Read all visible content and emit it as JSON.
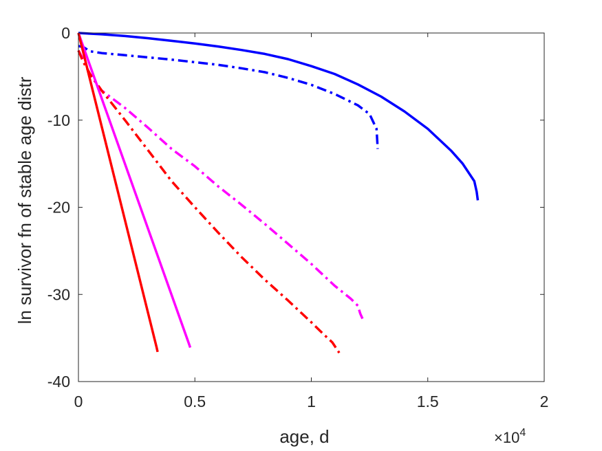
{
  "chart_data": {
    "type": "line",
    "title": "",
    "xlabel": "age, d",
    "ylabel": "ln survivor fn of stable age distr",
    "x_exponent_label": "×10",
    "x_exponent_power": "4",
    "xlim": [
      0,
      20000
    ],
    "ylim": [
      -40,
      0
    ],
    "x_ticks": [
      0,
      5000,
      10000,
      15000,
      20000
    ],
    "x_tick_labels": [
      "0",
      "0.5",
      "1",
      "1.5",
      "2"
    ],
    "y_ticks": [
      0,
      -10,
      -20,
      -30,
      -40
    ],
    "y_tick_labels": [
      "0",
      "-10",
      "-20",
      "-30",
      "-40"
    ],
    "grid": false,
    "legend": "none",
    "series": [
      {
        "color": "#0000ff",
        "style": "solid",
        "x": [
          0,
          1000,
          2000,
          3000,
          4000,
          5000,
          6000,
          7000,
          8000,
          9000,
          10000,
          11000,
          12000,
          13000,
          14000,
          15000,
          16000,
          16500,
          17000,
          17100,
          17150
        ],
        "y": [
          0,
          -0.15,
          -0.35,
          -0.6,
          -0.9,
          -1.2,
          -1.55,
          -1.95,
          -2.4,
          -3.0,
          -3.8,
          -4.7,
          -5.9,
          -7.3,
          -9.0,
          -11.0,
          -13.5,
          -15.0,
          -17.0,
          -18.2,
          -19.2
        ]
      },
      {
        "color": "#0000ff",
        "style": "dashdot",
        "x": [
          0,
          200,
          500,
          1000,
          2000,
          3000,
          4000,
          5000,
          6000,
          7000,
          8000,
          9000,
          10000,
          11000,
          12000,
          12500,
          12800,
          12850
        ],
        "y": [
          -1.5,
          -1.6,
          -2.1,
          -2.3,
          -2.55,
          -2.8,
          -3.05,
          -3.35,
          -3.65,
          -4.05,
          -4.5,
          -5.15,
          -5.95,
          -7.0,
          -8.3,
          -9.3,
          -11.0,
          -13.3
        ]
      },
      {
        "color": "#ff00ff",
        "style": "dashdot",
        "x": [
          0,
          200,
          500,
          1000,
          2000,
          3000,
          4000,
          5000,
          6000,
          7000,
          8000,
          9000,
          10000,
          11000,
          11700,
          12000,
          12100,
          12200
        ],
        "y": [
          -2.0,
          -3.0,
          -4.8,
          -6.6,
          -8.6,
          -10.9,
          -13.3,
          -15.3,
          -17.6,
          -19.7,
          -21.9,
          -24.2,
          -26.5,
          -29.0,
          -30.5,
          -31.3,
          -32.2,
          -32.8
        ]
      },
      {
        "color": "#ff0000",
        "style": "dashdot",
        "x": [
          0,
          200,
          500,
          1000,
          2000,
          3000,
          4000,
          5000,
          6000,
          7000,
          8000,
          9000,
          10000,
          10500,
          10900,
          11100,
          11200
        ],
        "y": [
          -2.0,
          -3.3,
          -4.7,
          -6.6,
          -10.0,
          -13.5,
          -17.0,
          -20.0,
          -22.9,
          -25.7,
          -28.3,
          -30.7,
          -33.2,
          -34.5,
          -35.5,
          -36.3,
          -36.7
        ]
      },
      {
        "color": "#ff00ff",
        "style": "solid",
        "x": [
          0,
          4750,
          4800
        ],
        "y": [
          0,
          -35.7,
          -36.1
        ]
      },
      {
        "color": "#ff0000",
        "style": "solid",
        "x": [
          0,
          3350,
          3400
        ],
        "y": [
          0,
          -36.0,
          -36.6
        ]
      }
    ]
  }
}
